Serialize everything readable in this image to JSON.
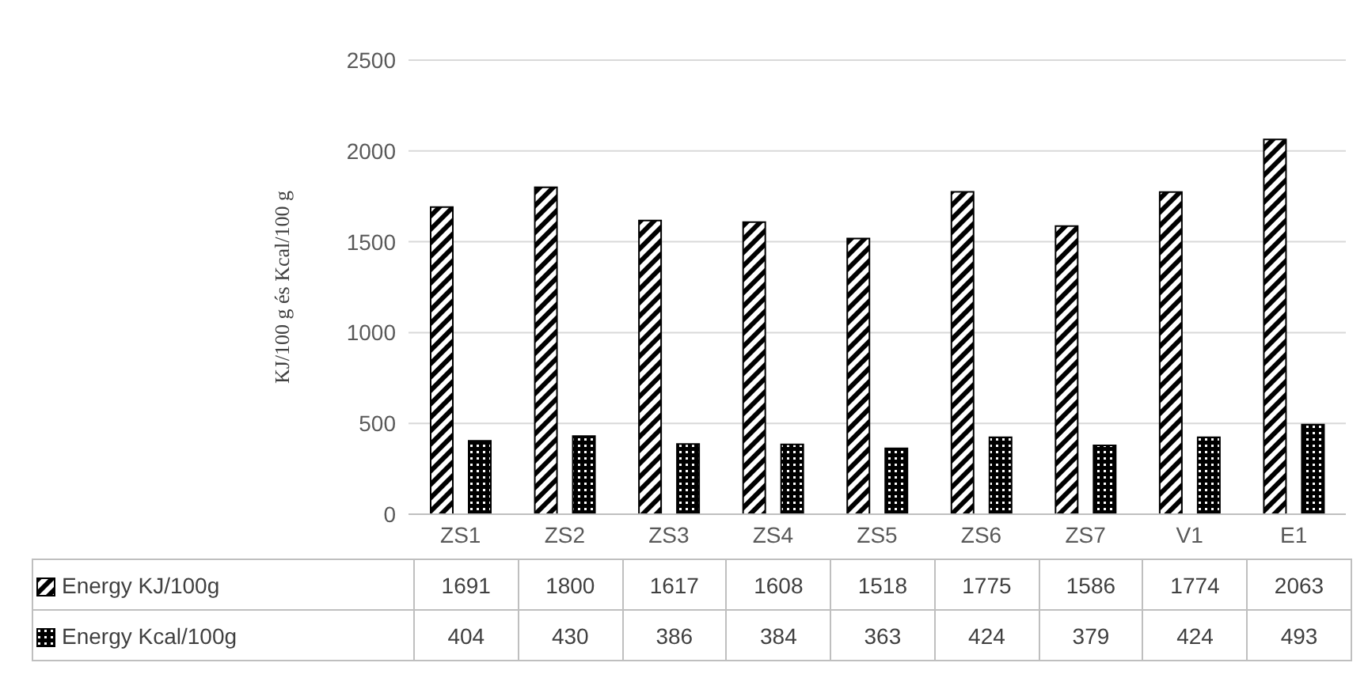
{
  "chart_data": {
    "type": "bar",
    "ylabel": "KJ/100 g és Kcal/100 g",
    "categories": [
      "ZS1",
      "ZS2",
      "ZS3",
      "ZS4",
      "ZS5",
      "ZS6",
      "ZS7",
      "V1",
      "E1"
    ],
    "series": [
      {
        "name": "Energy KJ/100g",
        "color": "#000000",
        "values": [
          1691,
          1800,
          1617,
          1608,
          1518,
          1775,
          1586,
          1774,
          2063
        ]
      },
      {
        "name": "Energy Kcal/100g",
        "color": "#000000",
        "values": [
          404,
          430,
          386,
          384,
          363,
          424,
          379,
          424,
          493
        ]
      }
    ],
    "ylim": [
      0,
      2500
    ],
    "yticks": [
      0,
      500,
      1000,
      1500,
      2000,
      2500
    ],
    "grid": "y",
    "legend": "bottom",
    "data_labels": true
  }
}
